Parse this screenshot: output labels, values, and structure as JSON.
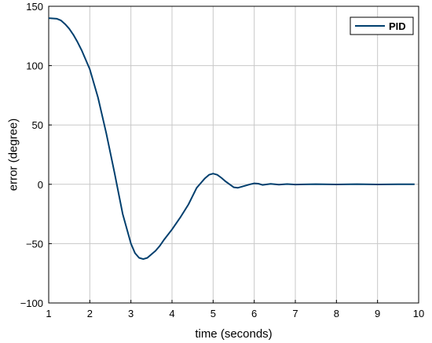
{
  "chart_data": {
    "type": "line",
    "title": "",
    "xlabel": "time (seconds)",
    "ylabel": "error (degree)",
    "xlim": [
      1,
      10
    ],
    "ylim": [
      -100,
      150
    ],
    "xticks": [
      1,
      2,
      3,
      4,
      5,
      6,
      7,
      8,
      9,
      10
    ],
    "yticks": [
      -100,
      -50,
      0,
      50,
      100,
      150
    ],
    "xtick_labels": [
      "1",
      "2",
      "3",
      "4",
      "5",
      "6",
      "7",
      "8",
      "9",
      "10"
    ],
    "ytick_labels": [
      "−100",
      "−50",
      "0",
      "50",
      "100",
      "150"
    ],
    "grid": true,
    "legend": {
      "position": "top-right",
      "entries": [
        "PID"
      ]
    },
    "series": [
      {
        "name": "PID",
        "color": "#003f6e",
        "x": [
          1.0,
          1.2,
          1.3,
          1.4,
          1.5,
          1.6,
          1.7,
          1.8,
          1.9,
          2.0,
          2.2,
          2.4,
          2.6,
          2.8,
          3.0,
          3.1,
          3.2,
          3.3,
          3.4,
          3.5,
          3.6,
          3.7,
          3.8,
          4.0,
          4.2,
          4.4,
          4.6,
          4.8,
          4.9,
          5.0,
          5.1,
          5.2,
          5.3,
          5.4,
          5.5,
          5.6,
          5.7,
          5.8,
          5.9,
          6.0,
          6.1,
          6.2,
          6.4,
          6.6,
          6.8,
          7.0,
          7.5,
          8.0,
          8.5,
          9.0,
          9.5,
          9.9
        ],
        "y": [
          140,
          139.5,
          138,
          135,
          131,
          126,
          120,
          113,
          105,
          97,
          73,
          43,
          10,
          -25,
          -50,
          -58,
          -62,
          -63,
          -62,
          -59,
          -56,
          -52,
          -47,
          -38,
          -28,
          -17,
          -3,
          5,
          8,
          9,
          8,
          5.5,
          2.5,
          0,
          -2.5,
          -3,
          -2,
          -1,
          0,
          0.8,
          0.5,
          -0.5,
          0.3,
          -0.3,
          0.2,
          -0.2,
          0.1,
          -0.1,
          0.1,
          -0.1,
          0.05,
          0
        ]
      }
    ]
  }
}
